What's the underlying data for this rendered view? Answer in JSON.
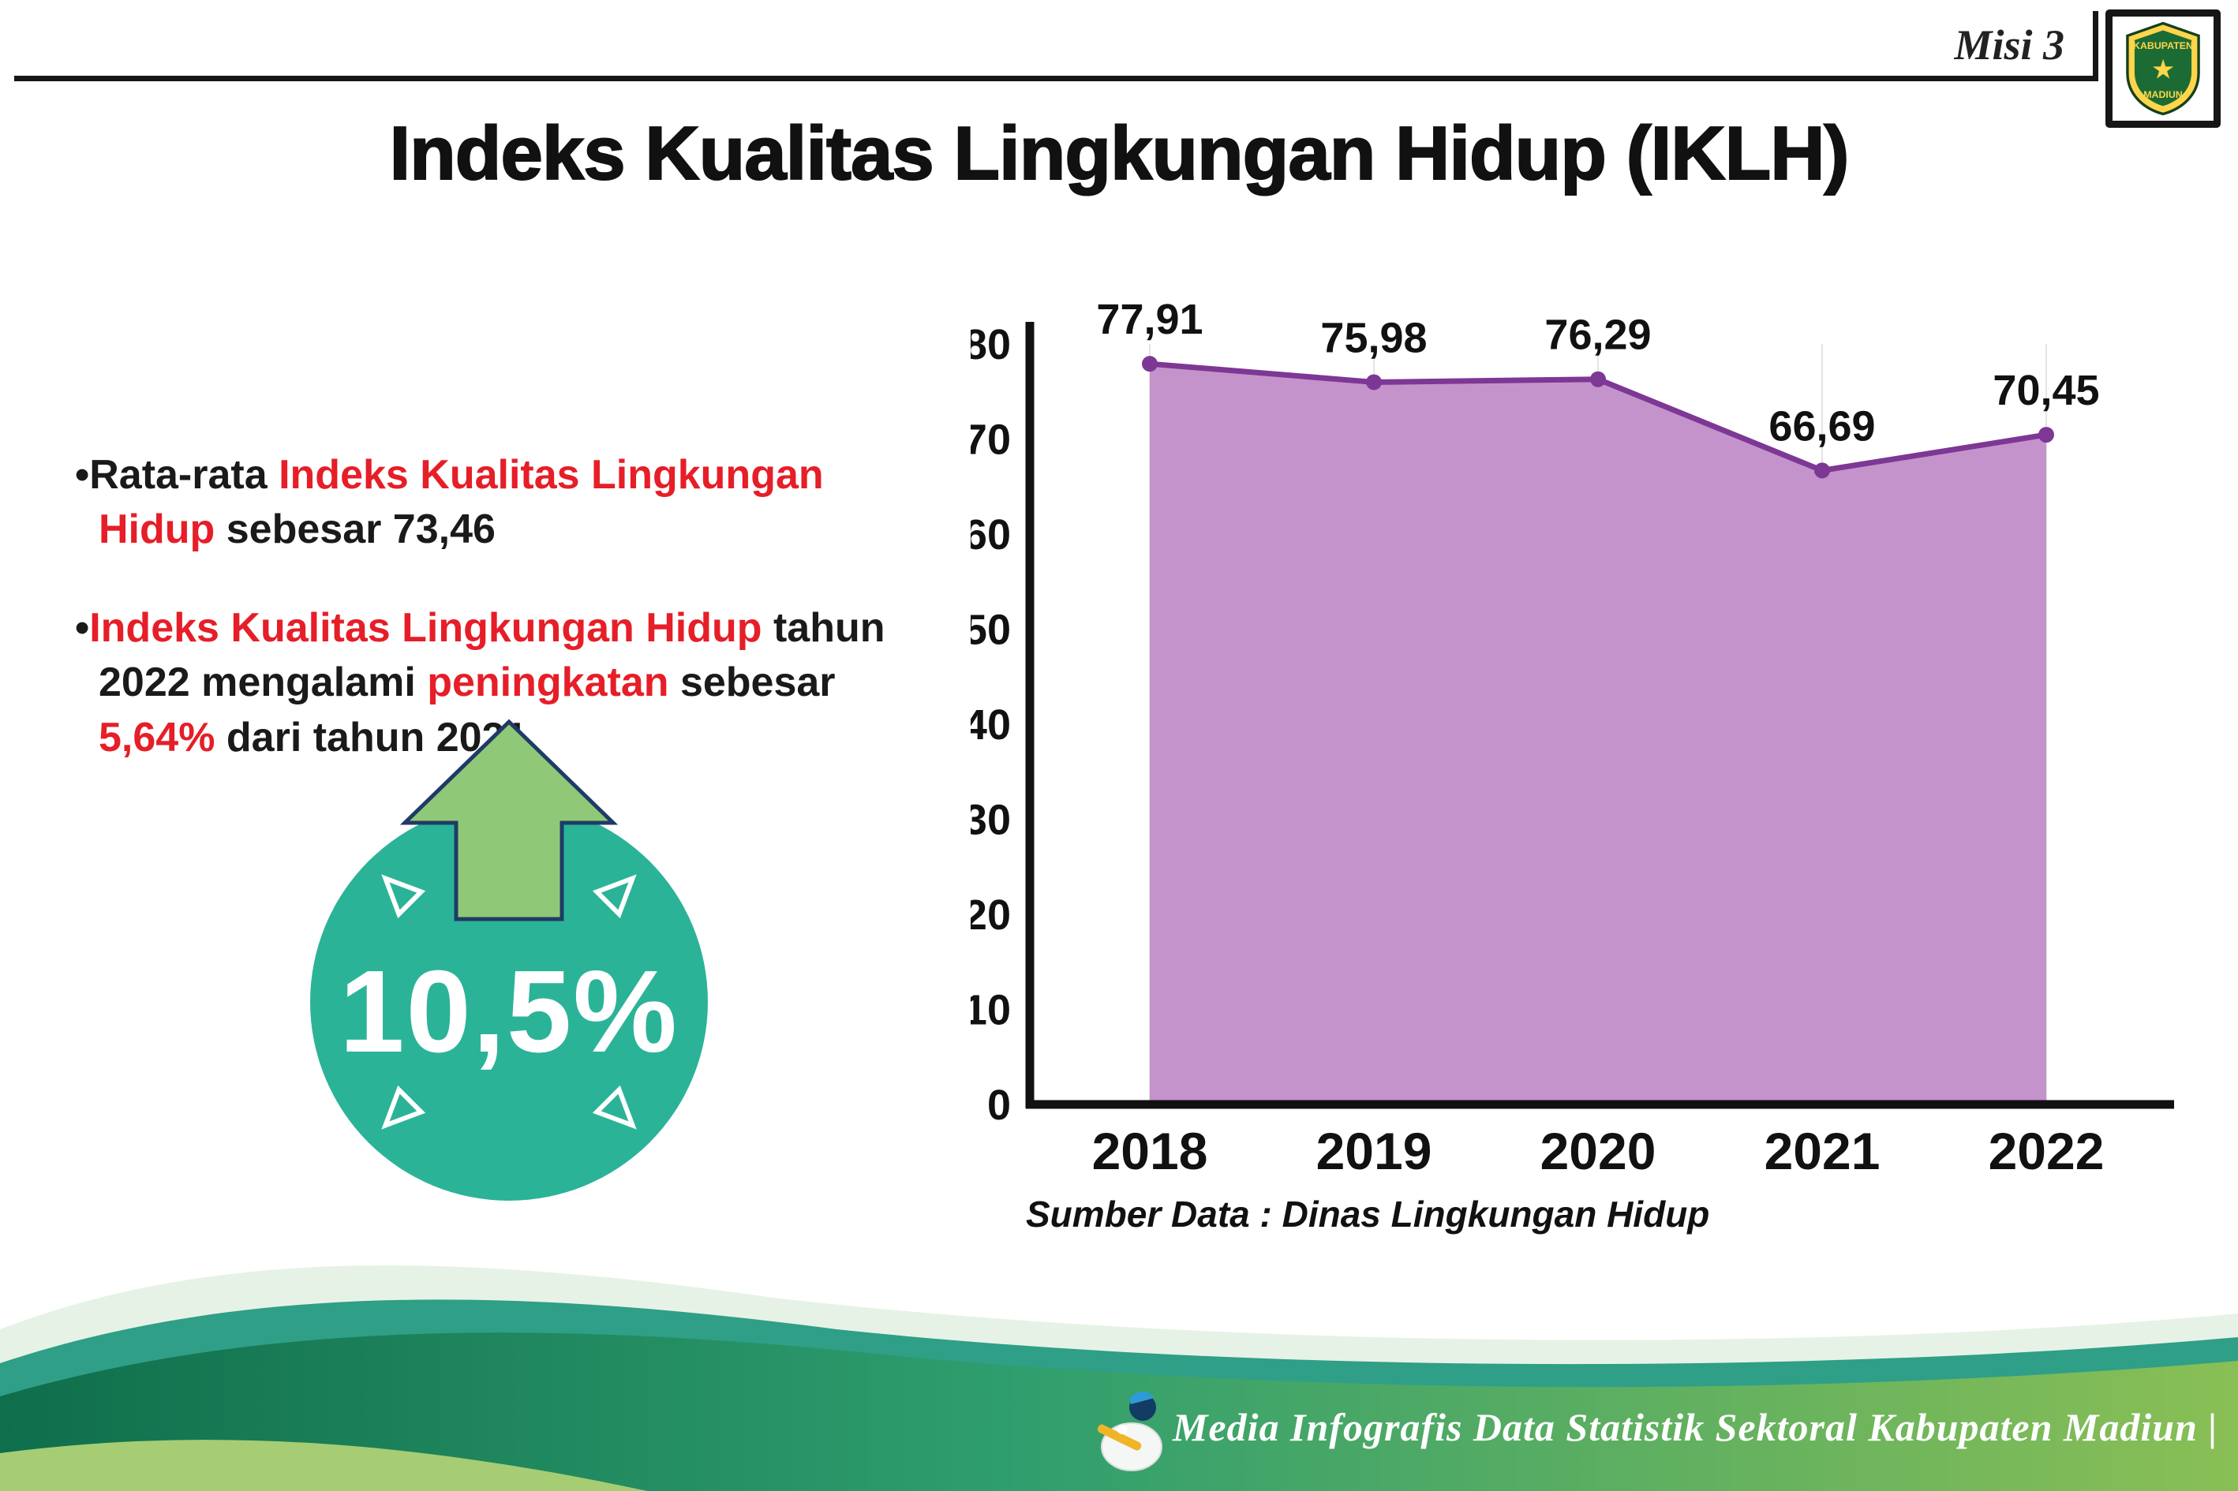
{
  "header": {
    "misi_label": "Misi 3",
    "title": "Indeks Kualitas Lingkungan Hidup (IKLH)",
    "logo_text_top": "KABUPATEN",
    "logo_text_bottom": "MADIUN"
  },
  "bullets": {
    "marker": "•",
    "item1": {
      "p1": "Rata-rata ",
      "p2_red": "Indeks Kualitas Lingkungan Hidup",
      "p3": " sebesar 73,46"
    },
    "item2": {
      "p1_red": "Indeks Kualitas Lingkungan Hidup",
      "p2": " tahun 2022 mengalami ",
      "p3_red": "peningkatan",
      "p4": " sebesar ",
      "p5_red": "5,64%",
      "p6": " dari tahun 2021"
    }
  },
  "badge": {
    "value": "10,5%",
    "circle_color": "#2bb398",
    "arrow_color": "#8fc978",
    "arrow_outline": "#1f3b66"
  },
  "chart_data": {
    "type": "area",
    "title": "",
    "categories": [
      "2018",
      "2019",
      "2020",
      "2021",
      "2022"
    ],
    "values": [
      77.91,
      75.98,
      76.29,
      66.69,
      70.45
    ],
    "value_labels": [
      "77,91",
      "75,98",
      "76,29",
      "66,69",
      "70,45"
    ],
    "ylim": [
      0,
      80
    ],
    "ytick_step": 10,
    "xlabel": "",
    "ylabel": "",
    "grid": "faint-vertical",
    "legend": "none",
    "fill_color": "#c493cb",
    "line_color": "#7d3794",
    "source": "Sumber Data : Dinas Lingkungan Hidup"
  },
  "footer": {
    "text": "Media Infografis Data Statistik Sektoral Kabupaten Madiun |"
  }
}
